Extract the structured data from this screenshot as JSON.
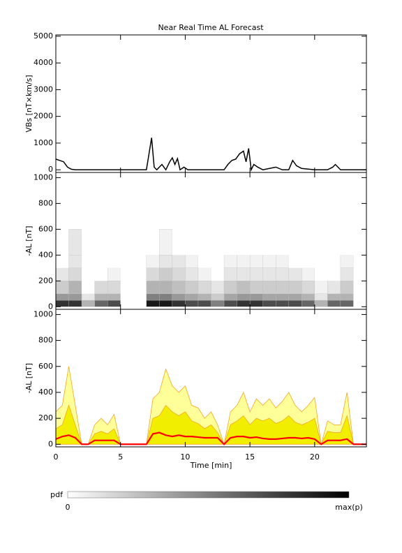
{
  "chart_data": [
    {
      "type": "line",
      "title": "Near Real Time AL Forecast",
      "ylabel": "VBs [nT×km/s]",
      "xlim": [
        0,
        24
      ],
      "xticks": [
        0,
        5,
        10,
        15,
        20
      ],
      "ylim": [
        -100,
        5050
      ],
      "yticks": [
        0,
        1000,
        2000,
        3000,
        4000,
        5000
      ],
      "color": "#000000",
      "x": [
        0,
        0.3,
        0.6,
        0.9,
        1.2,
        1.5,
        2,
        3,
        4,
        5,
        6,
        7,
        7.2,
        7.4,
        7.6,
        7.8,
        8.2,
        8.5,
        8.8,
        9,
        9.2,
        9.4,
        9.6,
        9.9,
        10.2,
        10.5,
        11,
        12,
        13,
        13.3,
        13.6,
        13.9,
        14.2,
        14.5,
        14.7,
        14.9,
        15.1,
        15.3,
        15.6,
        16,
        16.5,
        17,
        17.5,
        18,
        18.3,
        18.6,
        19,
        20,
        21,
        21.4,
        21.6,
        22,
        23,
        24
      ],
      "values": [
        400,
        350,
        300,
        100,
        20,
        0,
        0,
        0,
        0,
        0,
        0,
        0,
        600,
        1200,
        100,
        0,
        200,
        0,
        300,
        450,
        200,
        420,
        0,
        100,
        0,
        0,
        0,
        0,
        0,
        200,
        350,
        400,
        600,
        700,
        300,
        800,
        0,
        200,
        100,
        0,
        50,
        100,
        0,
        0,
        350,
        150,
        50,
        0,
        0,
        100,
        200,
        0,
        0,
        0
      ]
    },
    {
      "type": "heatmap",
      "ylabel": "-AL [nT]",
      "xlim": [
        0,
        24
      ],
      "xticks": [
        0,
        5,
        10,
        15,
        20
      ],
      "ylim": [
        -20,
        1040
      ],
      "yticks": [
        0,
        200,
        400,
        600,
        800,
        1000
      ],
      "xbins": [
        0,
        1,
        2,
        3,
        4,
        5,
        6,
        7,
        8,
        9,
        10,
        11,
        12,
        13,
        14,
        15,
        16,
        17,
        18,
        19,
        20,
        21,
        22,
        23,
        24
      ],
      "ybins": [
        0,
        50,
        100,
        200,
        300,
        400,
        600
      ],
      "z": [
        [
          0.8,
          0.4,
          0.2,
          0.1,
          0,
          0
        ],
        [
          0.8,
          0.4,
          0.3,
          0.15,
          0.1,
          0.1
        ],
        [
          0.3,
          0.1,
          0,
          0,
          0,
          0
        ],
        [
          0.6,
          0.3,
          0.15,
          0,
          0,
          0
        ],
        [
          0.7,
          0.3,
          0.15,
          0.05,
          0,
          0
        ],
        [
          0,
          0,
          0,
          0,
          0,
          0
        ],
        [
          0,
          0,
          0,
          0,
          0,
          0
        ],
        [
          0.9,
          0.5,
          0.3,
          0.15,
          0.05,
          0
        ],
        [
          0.9,
          0.5,
          0.3,
          0.2,
          0.1,
          0.05
        ],
        [
          0.8,
          0.4,
          0.25,
          0.15,
          0.1,
          0
        ],
        [
          0.7,
          0.35,
          0.2,
          0.1,
          0.05,
          0
        ],
        [
          0.7,
          0.3,
          0.15,
          0.05,
          0,
          0
        ],
        [
          0.5,
          0.2,
          0.1,
          0,
          0,
          0
        ],
        [
          0.7,
          0.35,
          0.2,
          0.1,
          0.05,
          0
        ],
        [
          0.8,
          0.4,
          0.25,
          0.1,
          0.05,
          0
        ],
        [
          0.8,
          0.4,
          0.2,
          0.1,
          0.05,
          0
        ],
        [
          0.7,
          0.35,
          0.2,
          0.1,
          0.05,
          0
        ],
        [
          0.7,
          0.35,
          0.2,
          0.1,
          0.05,
          0
        ],
        [
          0.7,
          0.35,
          0.2,
          0.1,
          0,
          0
        ],
        [
          0.6,
          0.3,
          0.15,
          0.05,
          0,
          0
        ],
        [
          0.3,
          0.1,
          0.05,
          0,
          0,
          0
        ],
        [
          0.6,
          0.3,
          0.1,
          0,
          0,
          0
        ],
        [
          0.6,
          0.3,
          0.2,
          0.1,
          0.05,
          0
        ],
        [
          0,
          0,
          0,
          0,
          0,
          0
        ]
      ]
    },
    {
      "type": "area",
      "ylabel": "-AL [nT]",
      "xlabel": "Time [min]",
      "xlim": [
        0,
        24
      ],
      "xticks": [
        0,
        5,
        10,
        15,
        20
      ],
      "ylim": [
        -20,
        1040
      ],
      "yticks": [
        0,
        200,
        400,
        600,
        800,
        1000
      ],
      "x": [
        0,
        0.5,
        1,
        1.5,
        2,
        2.5,
        3,
        3.5,
        4,
        4.5,
        5,
        5.5,
        6,
        6.5,
        7,
        7.5,
        8,
        8.5,
        9,
        9.5,
        10,
        10.5,
        11,
        11.5,
        12,
        12.5,
        13,
        13.5,
        14,
        14.5,
        15,
        15.5,
        16,
        16.5,
        17,
        17.5,
        18,
        18.5,
        19,
        19.5,
        20,
        20.5,
        21,
        21.5,
        22,
        22.5,
        23,
        23.5,
        24
      ],
      "series": [
        {
          "color": "#ffff99",
          "edge": "#f5a623",
          "fill": true,
          "values": [
            250,
            300,
            600,
            300,
            0,
            0,
            150,
            200,
            150,
            230,
            0,
            0,
            0,
            0,
            0,
            350,
            400,
            580,
            450,
            400,
            450,
            300,
            280,
            200,
            250,
            150,
            0,
            250,
            300,
            400,
            250,
            350,
            300,
            350,
            280,
            330,
            400,
            300,
            250,
            300,
            360,
            0,
            180,
            150,
            150,
            400,
            0,
            0,
            0
          ]
        },
        {
          "color": "#f2ee00",
          "edge": "#f5a623",
          "fill": true,
          "values": [
            120,
            150,
            300,
            150,
            0,
            0,
            80,
            100,
            80,
            120,
            0,
            0,
            0,
            0,
            0,
            200,
            220,
            300,
            250,
            220,
            250,
            180,
            160,
            120,
            150,
            90,
            0,
            150,
            180,
            220,
            150,
            200,
            180,
            200,
            160,
            180,
            220,
            170,
            150,
            170,
            200,
            0,
            100,
            90,
            90,
            220,
            0,
            0,
            0
          ]
        },
        {
          "color": "#ff0000",
          "fill": false,
          "values": [
            40,
            60,
            70,
            50,
            0,
            0,
            30,
            30,
            30,
            30,
            0,
            0,
            0,
            0,
            0,
            80,
            90,
            70,
            60,
            70,
            60,
            60,
            55,
            50,
            50,
            50,
            0,
            50,
            60,
            60,
            50,
            55,
            45,
            40,
            40,
            45,
            50,
            50,
            45,
            50,
            40,
            0,
            30,
            30,
            30,
            40,
            0,
            0,
            0
          ]
        }
      ]
    },
    {
      "type": "colorbar",
      "title": "pdf",
      "min_label": "0",
      "max_label": "max(p)",
      "colors": [
        "#ffffff",
        "#000000"
      ]
    }
  ]
}
